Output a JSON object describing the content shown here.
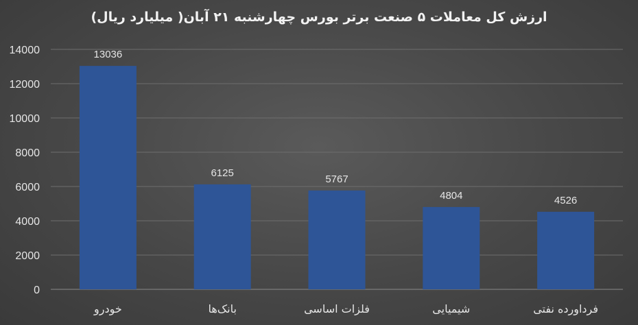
{
  "chart_data": {
    "type": "bar",
    "title": "ارزش کل معاملات ۵ صنعت برتر بورس چهارشنبه ۲۱ آبان( میلیارد ریال)",
    "categories": [
      "خودرو",
      "بانک‌ها",
      "فلزات اساسی",
      "شیمیایی",
      "فرداورده نفتی"
    ],
    "values": [
      13036,
      6125,
      5767,
      4804,
      4526
    ],
    "data_labels": [
      "13036",
      "6125",
      "5767",
      "4804",
      "4526"
    ],
    "yticks": [
      "0",
      "2000",
      "4000",
      "6000",
      "8000",
      "10000",
      "12000",
      "14000"
    ],
    "ylim": [
      0,
      14000
    ],
    "xlabel": "",
    "ylabel": "",
    "grid": true,
    "bar_color": "#2e5597"
  }
}
